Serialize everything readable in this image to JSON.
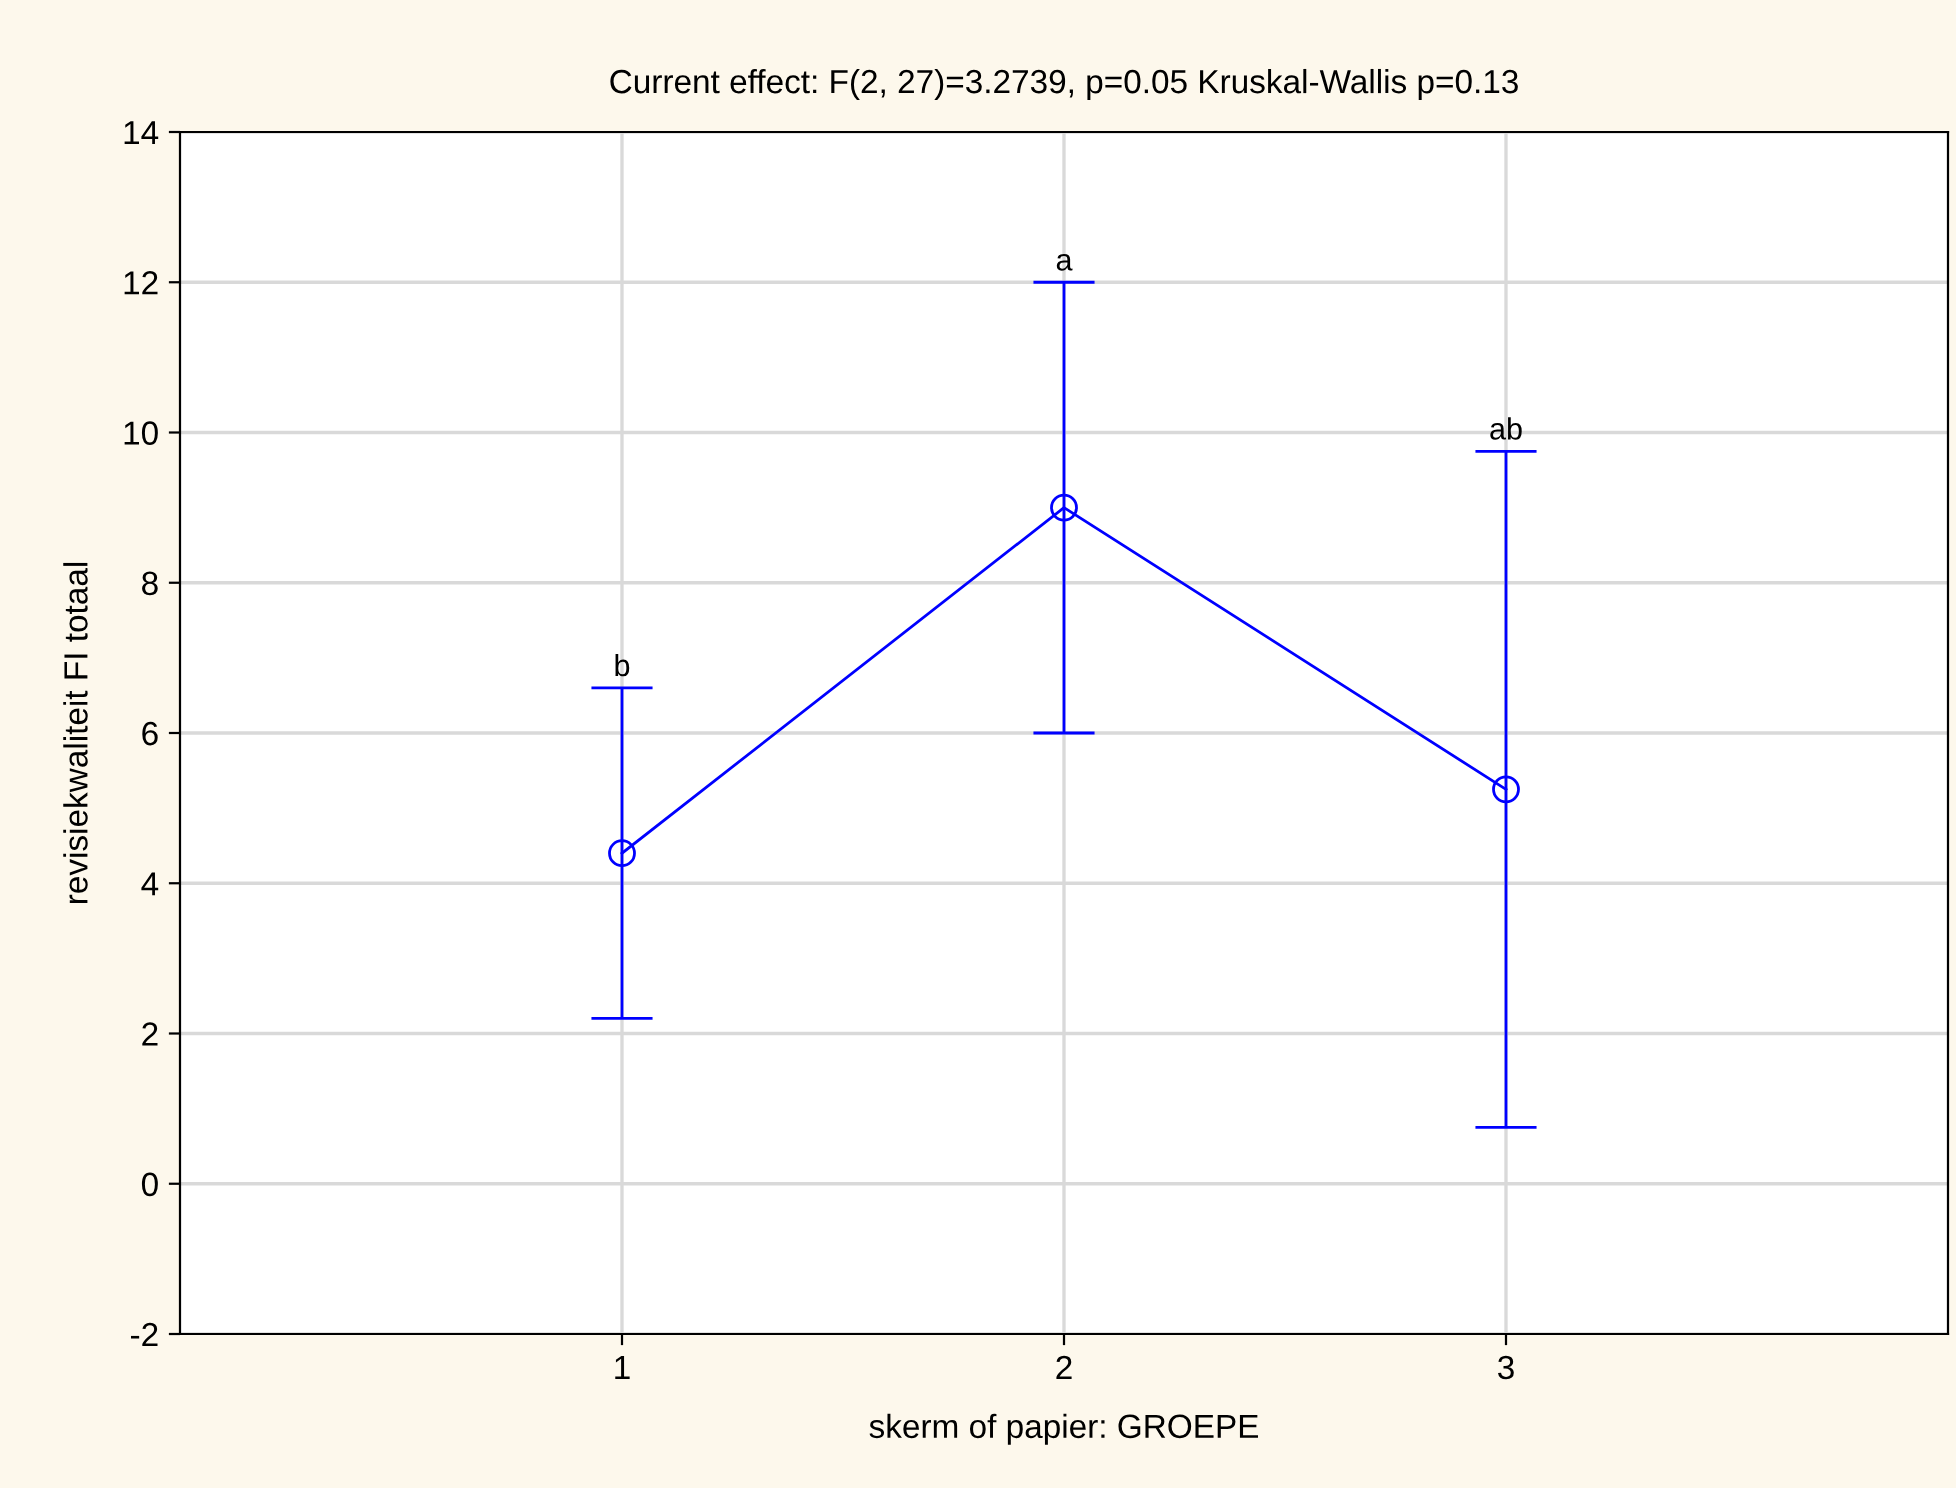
{
  "chart_data": {
    "type": "line",
    "title": "Current effect: F(2, 27)=3.2739, p=0.05 Kruskal-Wallis p=0.13",
    "xlabel": "skerm of papier: GROEPE",
    "ylabel": "revisiekwaliteit FI totaal",
    "x": [
      1,
      2,
      3
    ],
    "series": [
      {
        "color": "#0000ff",
        "values": [
          4.4,
          9.0,
          5.25
        ],
        "errors": [
          [
            2.2,
            6.6
          ],
          [
            6.0,
            12.0
          ],
          [
            0.75,
            9.75
          ]
        ]
      }
    ],
    "xlim": [
      0,
      4
    ],
    "xticks": [
      1,
      2,
      3
    ],
    "ylim": [
      -2,
      14
    ],
    "yticks": [
      -2,
      0,
      2,
      4,
      6,
      8,
      10,
      12,
      14
    ],
    "grid": true,
    "marker": "circle",
    "line_style": "solid",
    "annotations": [
      {
        "text": "b",
        "x": 1,
        "y": 6.6
      },
      {
        "text": "a",
        "x": 2,
        "y": 12.0
      },
      {
        "text": "ab",
        "x": 3,
        "y": 9.75
      }
    ]
  }
}
